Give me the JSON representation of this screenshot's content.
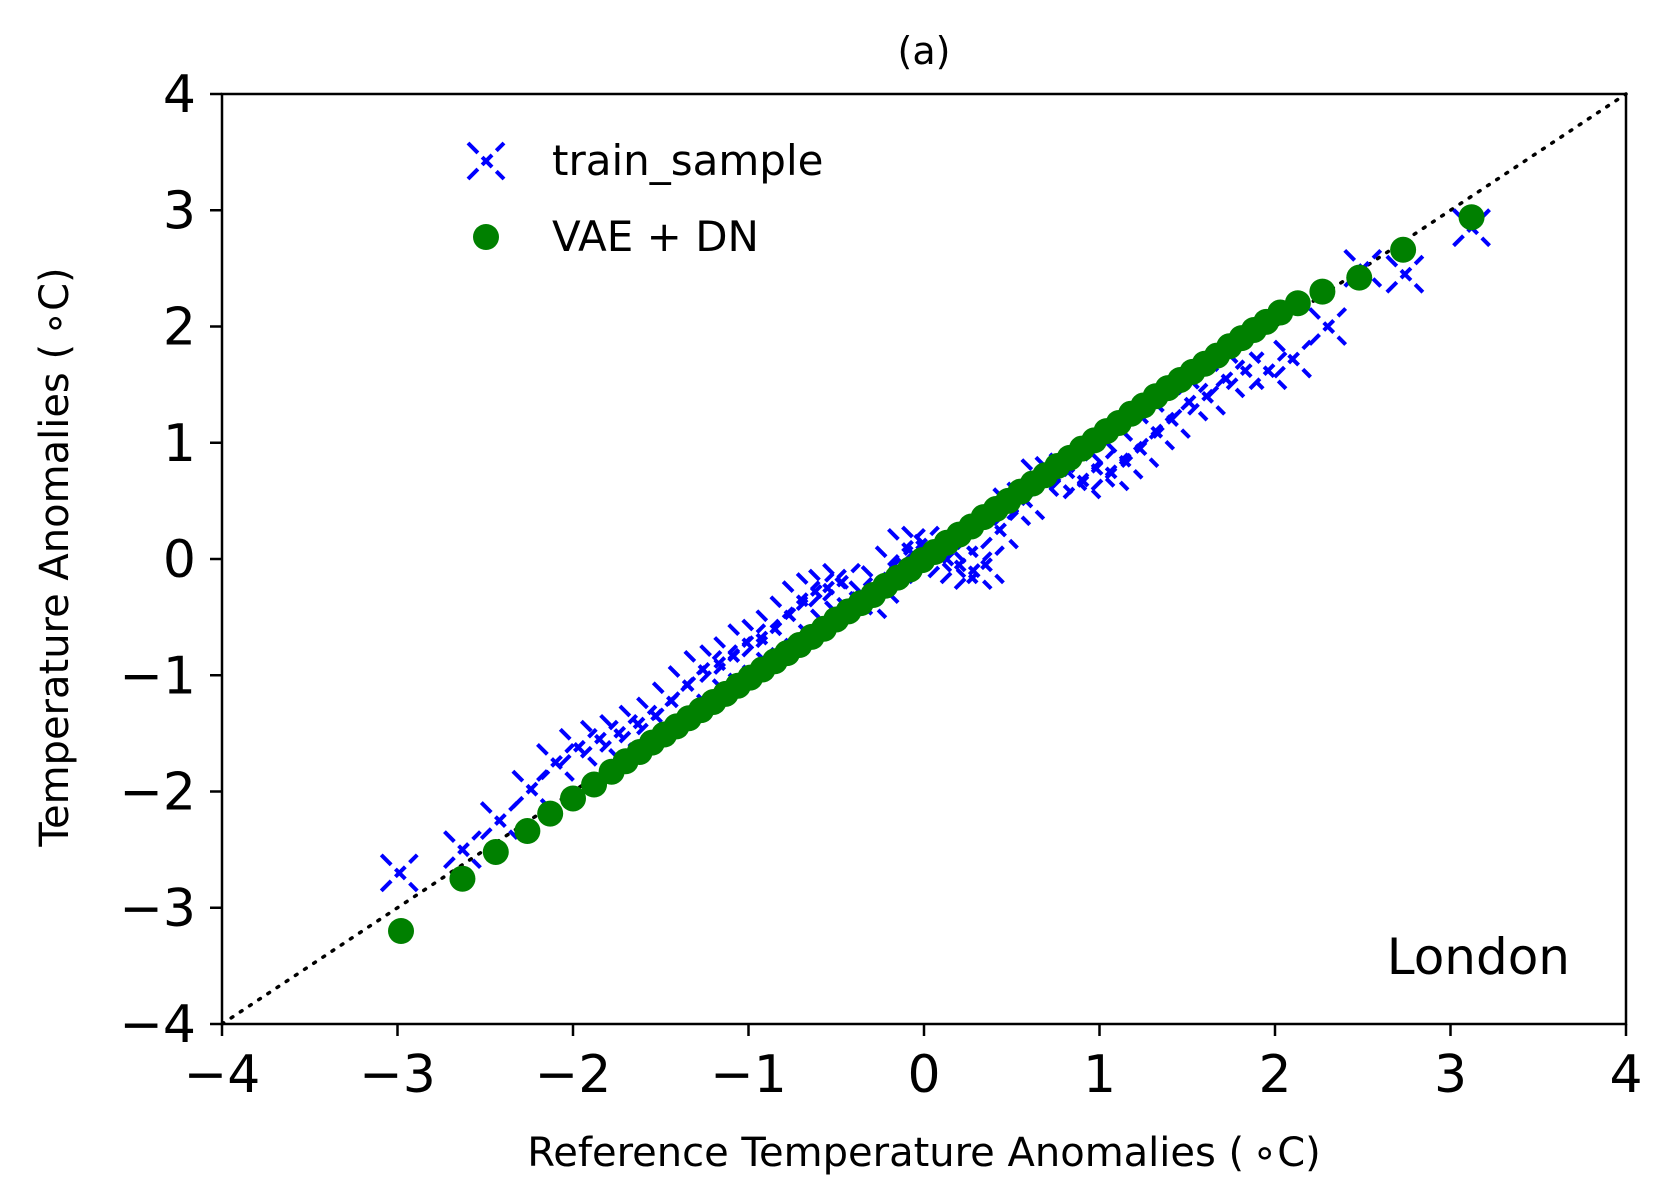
{
  "chart_data": {
    "type": "scatter",
    "title": "(a)",
    "xlabel": "Reference Temperature Anomalies ($^\\circ$C)",
    "ylabel": "Temperature Anomalies ($^\\circ$C)",
    "xlabel_text": "Reference Temperature Anomalies ( ∘C)",
    "ylabel_text": "Temperature Anomalies ( ∘C)",
    "xlim": [
      -4,
      4
    ],
    "ylim": [
      -4,
      4
    ],
    "xticks": [
      -4,
      -3,
      -2,
      -1,
      0,
      1,
      2,
      3,
      4
    ],
    "yticks": [
      -4,
      -3,
      -2,
      -1,
      0,
      1,
      2,
      3,
      4
    ],
    "xtick_labels": [
      "−4",
      "−3",
      "−2",
      "−1",
      "0",
      "1",
      "2",
      "3",
      "4"
    ],
    "ytick_labels": [
      "−4",
      "−3",
      "−2",
      "−1",
      "0",
      "1",
      "2",
      "3",
      "4"
    ],
    "grid": false,
    "legend_position": "top-left",
    "annotation": "London",
    "reference_line": {
      "style": "dotted",
      "color": "#000000",
      "from": [
        -4,
        -4
      ],
      "to": [
        4,
        4
      ]
    },
    "series": [
      {
        "name": "train_sample",
        "marker": "x",
        "color": "#0000ff",
        "x": [
          -2.99,
          -2.63,
          -2.42,
          -2.24,
          -2.1,
          -1.97,
          -1.85,
          -1.74,
          -1.63,
          -1.53,
          -1.44,
          -1.35,
          -1.26,
          -1.17,
          -1.09,
          -1.01,
          -0.93,
          -0.85,
          -0.77,
          -0.7,
          -0.62,
          -0.55,
          -0.47,
          -0.4,
          -0.32,
          -0.25,
          -0.17,
          -0.1,
          -0.02,
          0.05,
          0.13,
          0.2,
          0.28,
          0.35,
          0.43,
          0.5,
          0.58,
          0.66,
          0.74,
          0.82,
          0.9,
          0.98,
          1.06,
          1.14,
          1.23,
          1.32,
          1.41,
          1.51,
          1.61,
          1.72,
          1.83,
          1.96,
          2.1,
          2.3,
          2.5,
          2.74,
          3.12
        ],
        "y": [
          -2.7,
          -2.5,
          -2.25,
          -1.98,
          -1.75,
          -1.62,
          -1.55,
          -1.5,
          -1.42,
          -1.35,
          -1.22,
          -1.08,
          -0.95,
          -0.9,
          -0.83,
          -0.72,
          -0.68,
          -0.6,
          -0.48,
          -0.35,
          -0.28,
          -0.25,
          -0.2,
          -0.32,
          -0.35,
          -0.22,
          -0.05,
          0.1,
          0.12,
          0.05,
          0.0,
          -0.05,
          -0.1,
          -0.05,
          0.25,
          0.45,
          0.5,
          0.7,
          0.72,
          0.75,
          0.68,
          0.78,
          0.75,
          0.85,
          0.95,
          1.1,
          1.2,
          1.35,
          1.4,
          1.55,
          1.62,
          1.62,
          1.72,
          2.0,
          2.5,
          2.45,
          2.85
        ]
      },
      {
        "name": "VAE + DN",
        "marker": "o",
        "color": "#008000",
        "x": [
          -2.98,
          -2.63,
          -2.44,
          -2.26,
          -2.13,
          -2.0,
          -1.88,
          -1.78,
          -1.7,
          -1.62,
          -1.55,
          -1.48,
          -1.41,
          -1.34,
          -1.27,
          -1.2,
          -1.13,
          -1.06,
          -0.99,
          -0.92,
          -0.85,
          -0.78,
          -0.71,
          -0.64,
          -0.57,
          -0.5,
          -0.43,
          -0.36,
          -0.29,
          -0.22,
          -0.15,
          -0.08,
          -0.01,
          0.06,
          0.13,
          0.2,
          0.27,
          0.34,
          0.41,
          0.48,
          0.55,
          0.62,
          0.69,
          0.76,
          0.83,
          0.9,
          0.97,
          1.04,
          1.11,
          1.18,
          1.25,
          1.32,
          1.39,
          1.46,
          1.53,
          1.6,
          1.67,
          1.74,
          1.81,
          1.88,
          1.95,
          2.03,
          2.13,
          2.27,
          2.48,
          2.73,
          3.12
        ],
        "y": [
          -3.2,
          -2.75,
          -2.52,
          -2.34,
          -2.19,
          -2.06,
          -1.94,
          -1.83,
          -1.74,
          -1.66,
          -1.58,
          -1.51,
          -1.44,
          -1.37,
          -1.3,
          -1.23,
          -1.16,
          -1.09,
          -1.02,
          -0.95,
          -0.88,
          -0.81,
          -0.74,
          -0.67,
          -0.6,
          -0.52,
          -0.45,
          -0.38,
          -0.31,
          -0.23,
          -0.16,
          -0.09,
          -0.01,
          0.06,
          0.14,
          0.21,
          0.28,
          0.36,
          0.43,
          0.5,
          0.58,
          0.65,
          0.72,
          0.8,
          0.87,
          0.95,
          1.02,
          1.1,
          1.17,
          1.25,
          1.32,
          1.4,
          1.47,
          1.54,
          1.61,
          1.68,
          1.75,
          1.83,
          1.9,
          1.97,
          2.04,
          2.12,
          2.2,
          2.3,
          2.42,
          2.66,
          2.94
        ]
      }
    ]
  }
}
